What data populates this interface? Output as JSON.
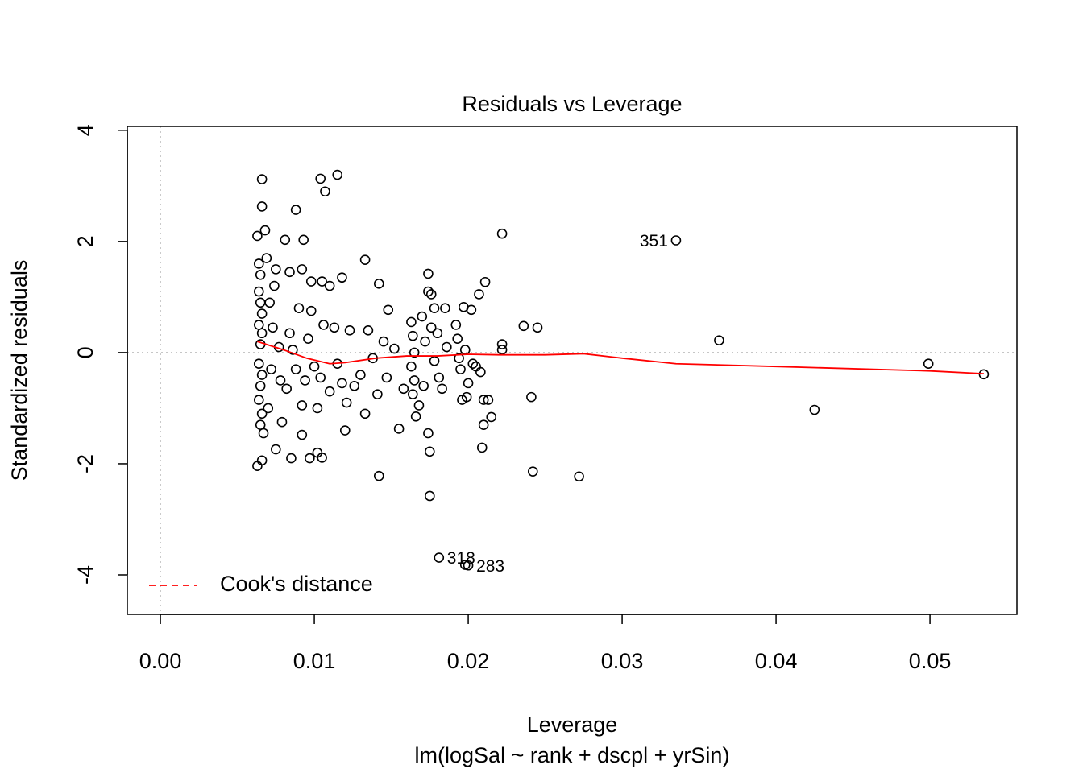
{
  "chart_data": {
    "type": "scatter",
    "title": "Residuals vs Leverage",
    "xlabel": "Leverage",
    "subtitle": "lm(logSal ~ rank + dscpl + yrSin)",
    "ylabel": "Standardized residuals",
    "xlim": [
      -0.00215,
      0.05565
    ],
    "ylim": [
      -4.71,
      4.07
    ],
    "xticks": [
      {
        "value": 0,
        "label": "0.00"
      },
      0.01,
      0.02,
      0.03,
      0.04,
      0.05
    ],
    "yticks": [
      -4,
      -2,
      0,
      2,
      4
    ],
    "reference_lines": {
      "x": 0,
      "y": 0
    },
    "color": "#000000",
    "x": [
      0.0066,
      0.0104,
      0.0115,
      0.0107,
      0.0066,
      0.0088,
      0.0222,
      0.0335,
      0.0363,
      0.0499,
      0.0535,
      0.0425,
      0.0272,
      0.0242,
      0.0142,
      0.0175,
      0.0181,
      0.0198,
      0.02,
      0.0209,
      0.0241,
      0.0236,
      0.0245,
      0.0222,
      0.0222,
      0.0133,
      0.0142,
      0.0148,
      0.0155,
      0.0063,
      0.0066,
      0.0075,
      0.0085,
      0.0092,
      0.0102,
      0.0105,
      0.0097,
      0.0081,
      0.0093,
      0.0063,
      0.0068,
      0.0069,
      0.0075,
      0.0084,
      0.0092,
      0.0098,
      0.0105,
      0.011,
      0.0118,
      0.0174,
      0.0174,
      0.0176,
      0.0178,
      0.0185,
      0.0197,
      0.0202,
      0.0211,
      0.0207,
      0.0064,
      0.0065,
      0.0064,
      0.0065,
      0.0066,
      0.0064,
      0.0066,
      0.0065,
      0.0064,
      0.0066,
      0.0065,
      0.0064,
      0.0066,
      0.0065,
      0.0067,
      0.007,
      0.0072,
      0.0073,
      0.0071,
      0.0074,
      0.0077,
      0.0078,
      0.0079,
      0.0082,
      0.0084,
      0.0086,
      0.0088,
      0.009,
      0.0092,
      0.0094,
      0.0096,
      0.0098,
      0.01,
      0.0102,
      0.0104,
      0.0106,
      0.011,
      0.0113,
      0.0115,
      0.0118,
      0.012,
      0.0121,
      0.0123,
      0.0126,
      0.013,
      0.0133,
      0.0135,
      0.0138,
      0.0141,
      0.0145,
      0.0147,
      0.0152,
      0.0158,
      0.0163,
      0.0164,
      0.0165,
      0.0163,
      0.0165,
      0.0164,
      0.0166,
      0.0168,
      0.017,
      0.0172,
      0.0171,
      0.0174,
      0.0175,
      0.0176,
      0.0178,
      0.018,
      0.0181,
      0.0183,
      0.0186,
      0.0192,
      0.0193,
      0.0194,
      0.0195,
      0.0196,
      0.0198,
      0.02,
      0.0199,
      0.0203,
      0.0205,
      0.0208,
      0.021,
      0.0213,
      0.0215,
      0.021
    ],
    "values": [
      3.12,
      3.13,
      3.2,
      2.9,
      2.63,
      2.57,
      2.14,
      2.02,
      0.22,
      -0.2,
      -0.39,
      -1.03,
      -2.23,
      -2.14,
      -2.22,
      -2.58,
      -3.69,
      -3.82,
      -3.83,
      -1.71,
      -0.8,
      0.48,
      0.45,
      0.15,
      0.05,
      1.67,
      1.24,
      0.77,
      -1.37,
      -2.04,
      -1.94,
      -1.74,
      -1.9,
      -1.48,
      -1.8,
      -1.89,
      -1.9,
      2.03,
      2.03,
      2.1,
      2.2,
      1.7,
      1.5,
      1.45,
      1.5,
      1.28,
      1.28,
      1.2,
      1.35,
      1.42,
      1.1,
      1.05,
      0.8,
      0.8,
      0.82,
      0.77,
      1.27,
      1.05,
      1.6,
      1.4,
      1.1,
      0.9,
      0.7,
      0.5,
      0.35,
      0.15,
      -0.2,
      -0.4,
      -0.6,
      -0.85,
      -1.1,
      -1.3,
      -1.45,
      -1.0,
      -0.3,
      0.45,
      0.9,
      1.2,
      0.1,
      -0.5,
      -1.25,
      -0.65,
      0.35,
      0.05,
      -0.3,
      0.8,
      -0.95,
      -0.5,
      0.25,
      0.75,
      -0.25,
      -1.0,
      -0.45,
      0.5,
      -0.7,
      0.45,
      -0.2,
      -0.55,
      -1.4,
      -0.9,
      0.4,
      -0.6,
      -0.4,
      -1.1,
      0.4,
      -0.1,
      -0.75,
      0.2,
      -0.45,
      0.07,
      -0.65,
      0.55,
      0.3,
      0.0,
      -0.25,
      -0.5,
      -0.75,
      -1.15,
      -0.95,
      0.65,
      0.2,
      -0.6,
      -1.45,
      -1.78,
      0.45,
      -0.15,
      0.35,
      -0.45,
      -0.65,
      0.1,
      0.5,
      0.25,
      -0.1,
      -0.3,
      -0.85,
      0.05,
      -0.55,
      -0.8,
      -0.2,
      -0.25,
      -0.35,
      -0.85,
      -0.85,
      -1.16,
      -1.3
    ],
    "annotations": [
      {
        "text": "351",
        "x": 0.0335,
        "y": 2.02
      },
      {
        "text": "318",
        "x": 0.0181,
        "y": -3.69
      },
      {
        "text": "283",
        "x": 0.02,
        "y": -3.83
      }
    ],
    "smooth": {
      "name": "Cook's distance",
      "color": "#ff0000",
      "x": [
        0.0063,
        0.008,
        0.0095,
        0.011,
        0.012,
        0.014,
        0.016,
        0.018,
        0.02,
        0.022,
        0.025,
        0.0275,
        0.03,
        0.0335,
        0.04,
        0.05,
        0.0535
      ],
      "values": [
        0.2,
        0.05,
        -0.1,
        -0.2,
        -0.18,
        -0.1,
        -0.06,
        -0.06,
        -0.03,
        -0.04,
        -0.04,
        -0.02,
        -0.1,
        -0.2,
        -0.25,
        -0.33,
        -0.38
      ]
    },
    "legend": "bottom-left"
  }
}
